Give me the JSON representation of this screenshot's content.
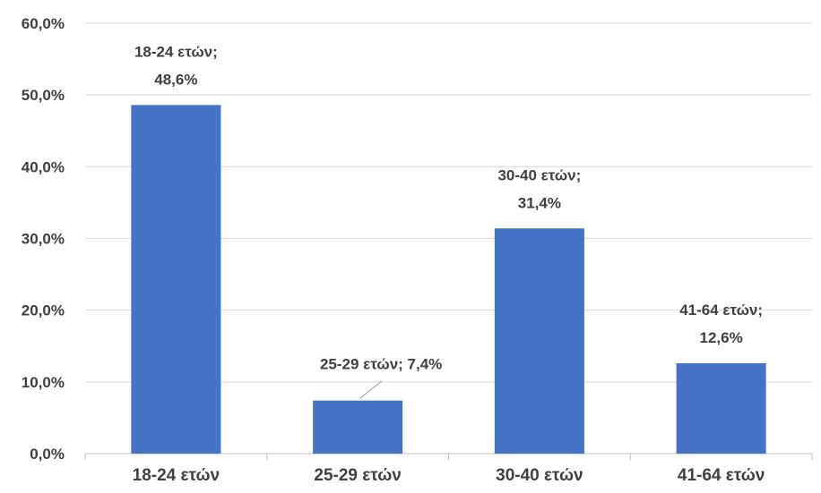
{
  "chart_data": {
    "type": "bar",
    "title": "",
    "xlabel": "",
    "ylabel": "",
    "categories": [
      "18-24 ετών",
      "25-29 ετών",
      "30-40 ετών",
      "41-64 ετών"
    ],
    "values": [
      48.6,
      7.4,
      31.4,
      12.6
    ],
    "y_ticks": [
      "0,0%",
      "10,0%",
      "20,0%",
      "30,0%",
      "40,0%",
      "50,0%",
      "60,0%"
    ],
    "ylim": [
      0,
      60
    ],
    "grid": true,
    "legend": "none",
    "bar_color": "#4472c4",
    "data_labels": [
      {
        "line1": "18-24 ετών;",
        "line2": "48,6%"
      },
      {
        "line1": "25-29 ετών; 7,4%",
        "line2": ""
      },
      {
        "line1": "30-40 ετών;",
        "line2": "31,4%"
      },
      {
        "line1": "41-64 ετών;",
        "line2": "12,6%"
      }
    ]
  }
}
